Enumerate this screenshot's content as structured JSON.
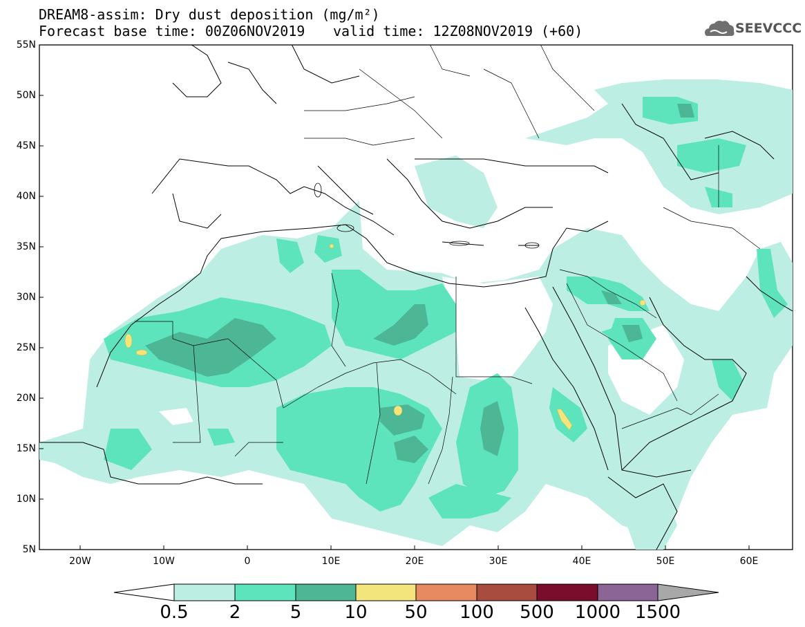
{
  "header": {
    "title_line1": "DREAM8-assim: Dry dust deposition (mg/m²)",
    "title_line2a": "Forecast base time: 00Z06NOV2019",
    "title_line2b": "valid time: 12Z08NOV2019 (+60)",
    "logo_text": "SEEVCCC",
    "logo_icon": "cloud-icon"
  },
  "map": {
    "lat_labels": [
      "55N",
      "50N",
      "45N",
      "40N",
      "35N",
      "30N",
      "25N",
      "20N",
      "15N",
      "10N",
      "5N"
    ],
    "lon_labels": [
      "20W",
      "10W",
      "0",
      "10E",
      "20E",
      "30E",
      "40E",
      "50E",
      "60E"
    ],
    "lat_range": [
      5,
      55
    ],
    "lon_range": [
      -25,
      65
    ]
  },
  "colorbar": {
    "levels": [
      "0.5",
      "2",
      "5",
      "10",
      "50",
      "100",
      "500",
      "1000",
      "1500"
    ],
    "colors": [
      "#ffffff",
      "#bdeee3",
      "#5de4bd",
      "#4db795",
      "#f3e47c",
      "#e78a62",
      "#a84c3f",
      "#7a0d2c",
      "#8a6595",
      "#a8a8a8"
    ]
  }
}
